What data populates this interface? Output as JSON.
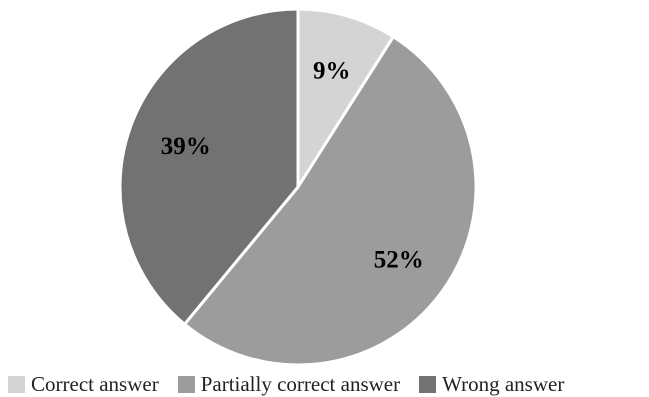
{
  "chart_data": {
    "type": "pie",
    "title": "",
    "slices": [
      {
        "label": "Correct answer",
        "value": 9,
        "display": "9%",
        "color": "#d4d4d4"
      },
      {
        "label": "Partially correct answer",
        "value": 52,
        "display": "52%",
        "color": "#9c9c9c"
      },
      {
        "label": "Wrong answer",
        "value": 39,
        "display": "39%",
        "color": "#727272"
      }
    ],
    "start_angle": "12 o'clock",
    "direction": "clockwise",
    "slice_separator_color": "#ffffff",
    "legend_position": "bottom",
    "grid": false
  }
}
